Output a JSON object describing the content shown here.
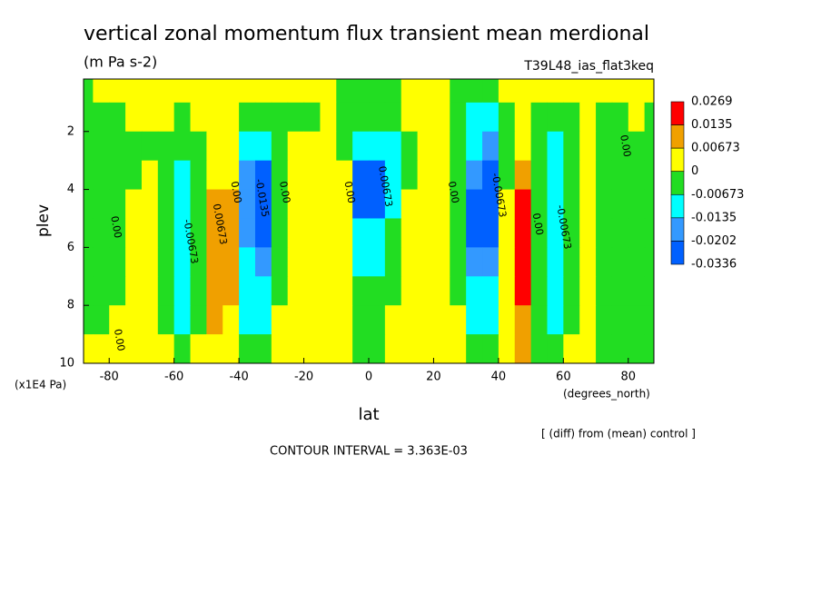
{
  "chart_data": {
    "type": "contour",
    "title": "vertical zonal momentum flux transient mean merdional",
    "units": "(m Pa s-2)",
    "run_label": "T39L48_ias_flat3keq",
    "x_label": "lat",
    "x_unit_label": "(degrees_north)",
    "y_label": "plev",
    "y_unit_label": "(x1E4 Pa)",
    "diff_note": "[ (diff) from (mean) control ]",
    "contour_interval_label": "CONTOUR INTERVAL = 3.363E-03",
    "xlim": [
      -87.9,
      87.9
    ],
    "xticks": [
      -80,
      -60,
      -40,
      -20,
      0,
      20,
      40,
      60,
      80
    ],
    "ylim": [
      10,
      0.19
    ],
    "yticks": [
      2,
      4,
      6,
      8,
      10
    ],
    "levels": [
      0.0269,
      0.0135,
      0.00673,
      0,
      -0.00673,
      -0.0135,
      -0.0202,
      -0.0336
    ],
    "level_colors": [
      "#ff0000",
      "#f0a000",
      "#ffff00",
      "#22dd22",
      "#00ffff",
      "#3399ff",
      "#0060ff"
    ],
    "x": [
      -87.5,
      -82.5,
      -77.5,
      -72.5,
      -67.5,
      -62.5,
      -57.5,
      -52.5,
      -47.5,
      -42.5,
      -37.5,
      -32.5,
      -27.5,
      -22.5,
      -17.5,
      -12.5,
      -7.5,
      -2.5,
      2.5,
      7.5,
      12.5,
      17.5,
      22.5,
      27.5,
      32.5,
      37.5,
      42.5,
      47.5,
      52.5,
      57.5,
      62.5,
      67.5,
      72.5,
      77.5,
      82.5,
      87.5
    ],
    "y": [
      0.5,
      1.5,
      2.5,
      3.5,
      4.5,
      5.5,
      6.5,
      7.5,
      8.5,
      9.5
    ],
    "z": [
      [
        -0.003,
        0.003,
        0.003,
        0.003,
        0.003,
        0.003,
        0.003,
        0.003,
        0.003,
        0.003,
        0.003,
        0.003,
        0.003,
        0.003,
        0.003,
        0.003,
        -0.003,
        -0.003,
        -0.003,
        -0.003,
        0.003,
        0.003,
        0.003,
        -0.003,
        -0.003,
        -0.003,
        0.003,
        0.003,
        0.003,
        0.003,
        0.003,
        0.003,
        0.003,
        0.003,
        0.003,
        0.003
      ],
      [
        -0.003,
        -0.003,
        -0.003,
        0.003,
        0.003,
        0.003,
        -0.003,
        0.003,
        0.003,
        0.003,
        -0.003,
        -0.003,
        -0.003,
        -0.003,
        -0.003,
        0.003,
        -0.003,
        -0.003,
        -0.003,
        -0.003,
        0.003,
        0.003,
        0.003,
        -0.003,
        -0.01,
        -0.01,
        -0.003,
        0.003,
        -0.003,
        -0.003,
        -0.003,
        0.003,
        -0.003,
        -0.003,
        0.003,
        -0.003
      ],
      [
        -0.003,
        -0.003,
        -0.003,
        -0.003,
        -0.003,
        -0.003,
        -0.003,
        -0.003,
        0.003,
        0.003,
        -0.01,
        -0.01,
        -0.003,
        0.003,
        0.003,
        0.003,
        -0.003,
        -0.01,
        -0.01,
        -0.01,
        -0.003,
        0.003,
        0.003,
        -0.003,
        -0.01,
        -0.017,
        -0.003,
        0.003,
        -0.003,
        -0.01,
        -0.003,
        0.003,
        -0.003,
        -0.003,
        -0.003,
        -0.003
      ],
      [
        -0.003,
        -0.003,
        -0.003,
        -0.003,
        0.003,
        -0.003,
        -0.01,
        -0.003,
        0.003,
        0.003,
        -0.017,
        -0.025,
        -0.003,
        0.003,
        0.003,
        0.003,
        0.003,
        -0.025,
        -0.025,
        -0.01,
        -0.003,
        0.003,
        0.003,
        -0.003,
        -0.017,
        -0.025,
        -0.003,
        0.01,
        -0.003,
        -0.01,
        -0.003,
        0.003,
        -0.003,
        -0.003,
        -0.003,
        -0.003
      ],
      [
        -0.003,
        -0.003,
        -0.003,
        0.003,
        0.003,
        -0.003,
        -0.01,
        -0.003,
        0.01,
        0.01,
        -0.017,
        -0.025,
        -0.003,
        0.003,
        0.003,
        0.003,
        0.003,
        -0.025,
        -0.025,
        -0.01,
        0.003,
        0.003,
        0.003,
        -0.003,
        -0.025,
        -0.025,
        0.003,
        0.02,
        -0.003,
        -0.01,
        -0.003,
        0.003,
        -0.003,
        -0.003,
        -0.003,
        -0.003
      ],
      [
        -0.003,
        -0.003,
        -0.003,
        0.003,
        0.003,
        -0.003,
        -0.01,
        -0.003,
        0.01,
        0.01,
        -0.017,
        -0.025,
        -0.003,
        0.003,
        0.003,
        0.003,
        0.003,
        -0.01,
        -0.01,
        -0.003,
        0.003,
        0.003,
        0.003,
        -0.003,
        -0.025,
        -0.025,
        0.003,
        0.02,
        -0.003,
        -0.01,
        -0.003,
        0.003,
        -0.003,
        -0.003,
        -0.003,
        -0.003
      ],
      [
        -0.003,
        -0.003,
        -0.003,
        0.003,
        0.003,
        -0.003,
        -0.01,
        -0.003,
        0.01,
        0.01,
        -0.01,
        -0.017,
        -0.003,
        0.003,
        0.003,
        0.003,
        0.003,
        -0.01,
        -0.01,
        -0.003,
        0.003,
        0.003,
        0.003,
        -0.003,
        -0.017,
        -0.017,
        0.003,
        0.02,
        -0.003,
        -0.01,
        -0.003,
        0.003,
        -0.003,
        -0.003,
        -0.003,
        -0.003
      ],
      [
        -0.003,
        -0.003,
        -0.003,
        0.003,
        0.003,
        -0.003,
        -0.01,
        -0.003,
        0.01,
        0.01,
        -0.01,
        -0.01,
        -0.003,
        0.003,
        0.003,
        0.003,
        0.003,
        -0.003,
        -0.003,
        -0.003,
        0.003,
        0.003,
        0.003,
        -0.003,
        -0.01,
        -0.01,
        0.003,
        0.02,
        -0.003,
        -0.01,
        -0.003,
        0.003,
        -0.003,
        -0.003,
        -0.003,
        -0.003
      ],
      [
        -0.003,
        -0.003,
        0.003,
        0.003,
        0.003,
        -0.003,
        -0.01,
        -0.003,
        0.01,
        0.003,
        -0.01,
        -0.01,
        0.003,
        0.003,
        0.003,
        0.003,
        0.003,
        -0.003,
        -0.003,
        0.003,
        0.003,
        0.003,
        0.003,
        0.003,
        -0.01,
        -0.01,
        0.003,
        0.01,
        -0.003,
        -0.01,
        -0.003,
        0.003,
        -0.003,
        -0.003,
        -0.003,
        -0.003
      ],
      [
        0.003,
        0.003,
        0.003,
        0.003,
        0.003,
        0.003,
        -0.003,
        0.003,
        0.003,
        0.003,
        -0.003,
        -0.003,
        0.003,
        0.003,
        0.003,
        0.003,
        0.003,
        -0.003,
        -0.003,
        0.003,
        0.003,
        0.003,
        0.003,
        0.003,
        -0.003,
        -0.003,
        0.003,
        0.01,
        -0.003,
        -0.003,
        0.003,
        0.003,
        -0.003,
        -0.003,
        -0.003,
        -0.003
      ]
    ],
    "contour_labels": [
      {
        "text": "0.00",
        "lat": -78,
        "plev": 5.3
      },
      {
        "text": "0.00",
        "lat": -77,
        "plev": 9.2
      },
      {
        "text": "-0.00673",
        "lat": -55,
        "plev": 5.8
      },
      {
        "text": "0.00673",
        "lat": -46,
        "plev": 5.2
      },
      {
        "text": "0.00",
        "lat": -41,
        "plev": 4.1
      },
      {
        "text": "-0.0135",
        "lat": -33,
        "plev": 4.3
      },
      {
        "text": "0.00",
        "lat": -26,
        "plev": 4.1
      },
      {
        "text": "0.00",
        "lat": -6,
        "plev": 4.1
      },
      {
        "text": "0.00673",
        "lat": 5,
        "plev": 3.9
      },
      {
        "text": "0.00",
        "lat": 26,
        "plev": 4.1
      },
      {
        "text": "-0.00673",
        "lat": 40,
        "plev": 4.2
      },
      {
        "text": "0.00",
        "lat": 52,
        "plev": 5.2
      },
      {
        "text": "-0.00673",
        "lat": 60,
        "plev": 5.3
      },
      {
        "text": "0.00",
        "lat": 79,
        "plev": 2.5
      }
    ]
  }
}
